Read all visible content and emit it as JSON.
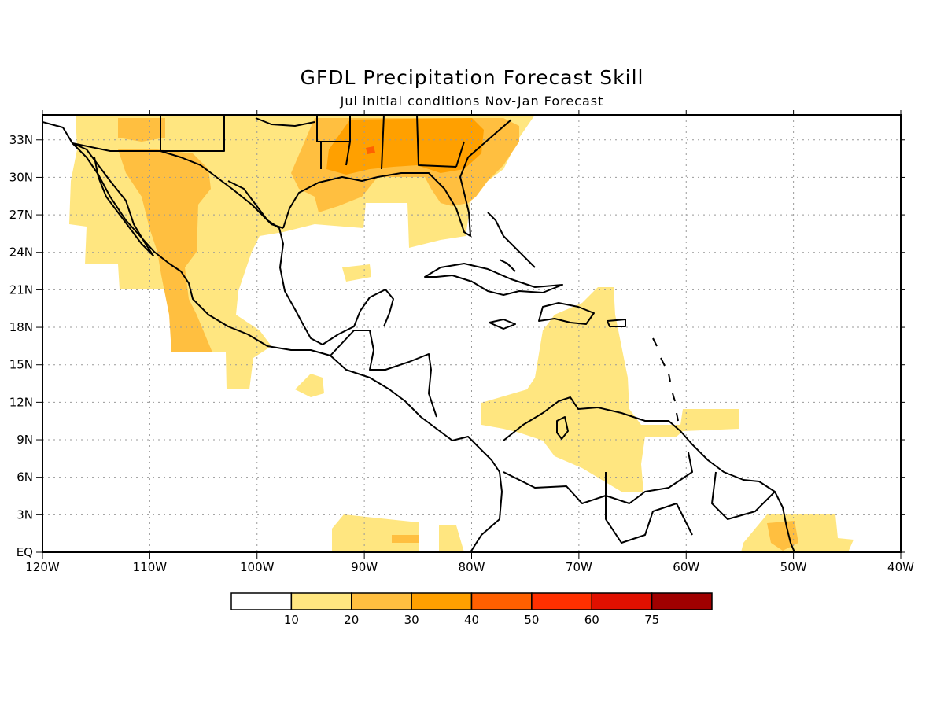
{
  "title": "GFDL Precipitation Forecast Skill",
  "subtitle": "Jul initial conditions   Nov-Jan Forecast",
  "axes": {
    "lon_labels": [
      "120W",
      "110W",
      "100W",
      "90W",
      "80W",
      "70W",
      "60W",
      "50W",
      "40W"
    ],
    "lat_labels": [
      "EQ",
      "3N",
      "6N",
      "9N",
      "12N",
      "15N",
      "18N",
      "21N",
      "24N",
      "27N",
      "30N",
      "33N"
    ],
    "lon_range": [
      -120,
      -40
    ],
    "lat_range": [
      0,
      35
    ],
    "grid": true
  },
  "colorbar": {
    "colors": [
      "#ffffff",
      "#ffe680",
      "#ffbf40",
      "#ffa000",
      "#ff6000",
      "#ff3000",
      "#e01000",
      "#a00000"
    ],
    "labels": [
      "10",
      "20",
      "30",
      "40",
      "50",
      "60",
      "75"
    ],
    "placement": "bottom"
  }
}
